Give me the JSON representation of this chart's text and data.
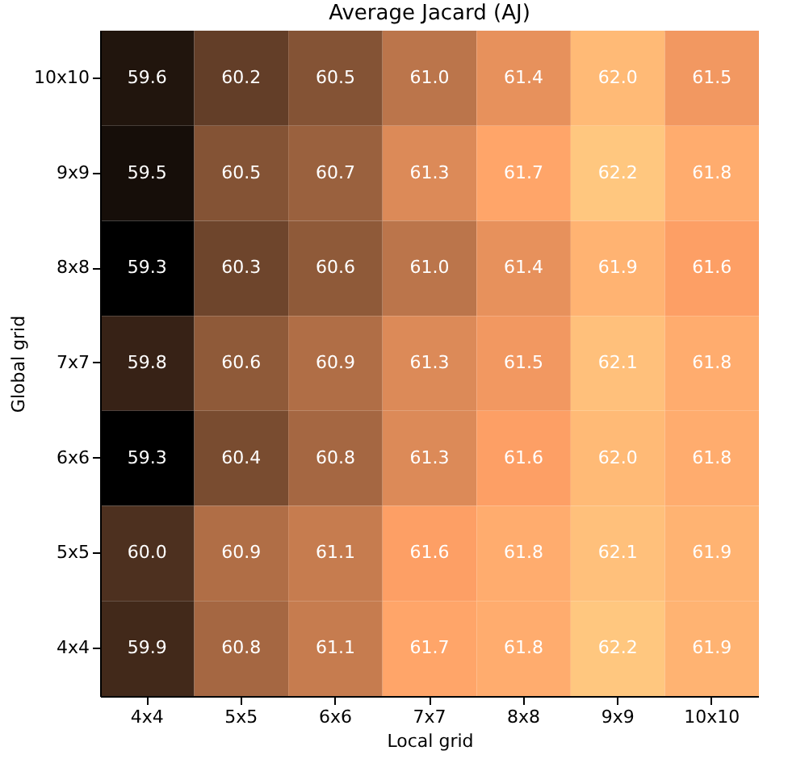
{
  "chart_data": {
    "type": "heatmap",
    "title": "Average Jacard (AJ)",
    "xlabel": "Local grid",
    "ylabel": "Global grid",
    "categories": [
      "4x4",
      "5x5",
      "6x6",
      "7x7",
      "8x8",
      "9x9",
      "10x10"
    ],
    "y_categories": [
      "10x10",
      "9x9",
      "8x8",
      "7x7",
      "6x6",
      "5x5",
      "4x4"
    ],
    "cells": [
      [
        59.6,
        60.2,
        60.5,
        61.0,
        61.4,
        62.0,
        61.5
      ],
      [
        59.5,
        60.5,
        60.7,
        61.3,
        61.7,
        62.2,
        61.8
      ],
      [
        59.3,
        60.3,
        60.6,
        61.0,
        61.4,
        61.9,
        61.6
      ],
      [
        59.8,
        60.6,
        60.9,
        61.3,
        61.5,
        62.1,
        61.8
      ],
      [
        59.3,
        60.4,
        60.8,
        61.3,
        61.6,
        62.0,
        61.8
      ],
      [
        60.0,
        60.9,
        61.1,
        61.6,
        61.8,
        62.1,
        61.9
      ],
      [
        59.9,
        60.8,
        61.1,
        61.7,
        61.8,
        62.2,
        61.9
      ]
    ],
    "cell_labels": [
      [
        "59.6",
        "60.2",
        "60.5",
        "61.0",
        "61.4",
        "62.0",
        "61.5"
      ],
      [
        "59.5",
        "60.5",
        "60.7",
        "61.3",
        "61.7",
        "62.2",
        "61.8"
      ],
      [
        "59.3",
        "60.3",
        "60.6",
        "61.0",
        "61.4",
        "61.9",
        "61.6"
      ],
      [
        "59.8",
        "60.6",
        "60.9",
        "61.3",
        "61.5",
        "62.1",
        "61.8"
      ],
      [
        "59.3",
        "60.4",
        "60.8",
        "61.3",
        "61.6",
        "62.0",
        "61.8"
      ],
      [
        "60.0",
        "60.9",
        "61.1",
        "61.6",
        "61.8",
        "62.1",
        "61.9"
      ],
      [
        "59.9",
        "60.8",
        "61.1",
        "61.7",
        "61.8",
        "62.2",
        "61.9"
      ]
    ]
  }
}
